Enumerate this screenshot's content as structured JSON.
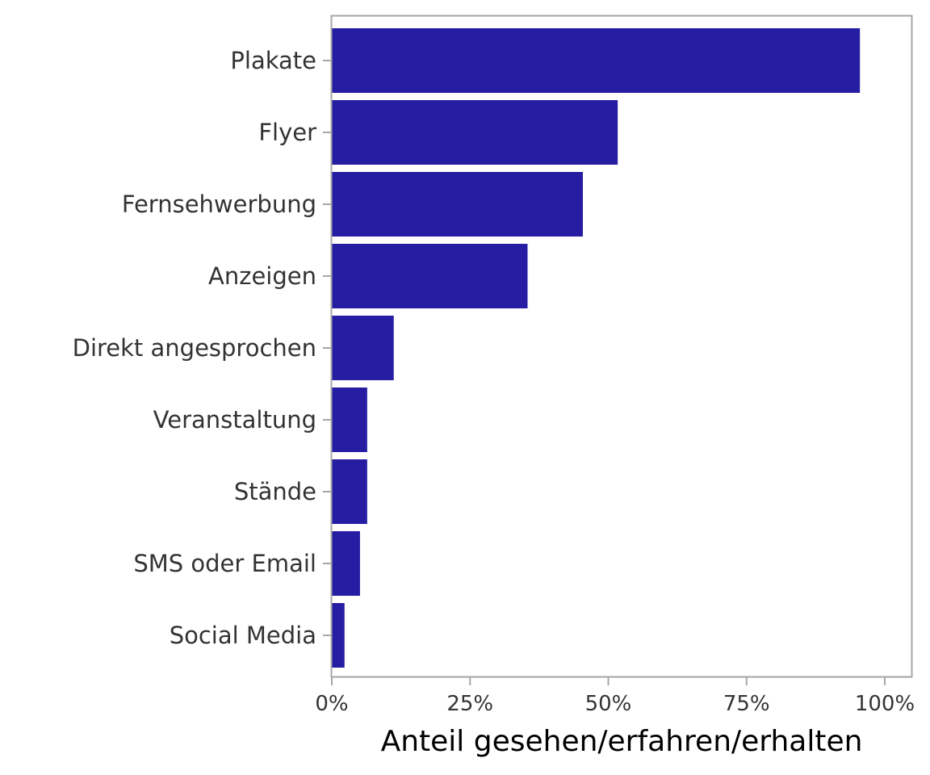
{
  "colors": {
    "bar": "#261DA3",
    "axis": "#A6A6A6",
    "label": "#333333",
    "title": "#000000",
    "background": "#FFFFFF"
  },
  "chart_data": {
    "type": "bar",
    "orientation": "horizontal",
    "categories": [
      "Plakate",
      "Flyer",
      "Fernsehwerbung",
      "Anzeigen",
      "Direkt angesprochen",
      "Veranstaltung",
      "Stände",
      "SMS oder Email",
      "Social Media"
    ],
    "values": [
      0.955,
      0.517,
      0.454,
      0.354,
      0.112,
      0.064,
      0.064,
      0.051,
      0.023
    ],
    "xlabel": "Anteil gesehen/erfahren/erhalten",
    "ylabel": "",
    "xlim": [
      0,
      1.05
    ],
    "xticks": [
      0,
      0.25,
      0.5,
      0.75,
      1.0
    ],
    "xtick_labels": [
      "0%",
      "25%",
      "50%",
      "75%",
      "100%"
    ],
    "grid": false,
    "legend": "none"
  }
}
